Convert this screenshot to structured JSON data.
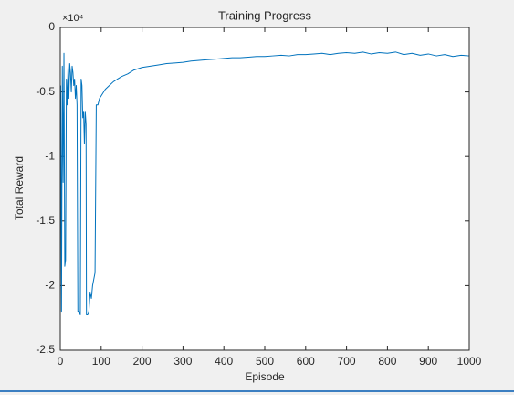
{
  "chart_data": {
    "type": "line",
    "title": "Training Progress",
    "x_label": "Episode",
    "y_label": "Total Reward",
    "y_multiplier": "×10⁴",
    "xlim": [
      0,
      1000
    ],
    "xticks": [
      0,
      100,
      200,
      300,
      400,
      500,
      600,
      700,
      800,
      900,
      1000
    ],
    "ylim": [
      -2.5,
      0
    ],
    "yticks": [
      -2.5,
      -2,
      -1.5,
      -1,
      -0.5,
      0
    ],
    "grid": false,
    "series": [
      {
        "name": "Total Reward",
        "color": "#0072bd",
        "x": [
          1,
          3,
          5,
          7,
          9,
          11,
          13,
          15,
          17,
          19,
          21,
          23,
          25,
          27,
          29,
          31,
          33,
          35,
          37,
          39,
          41,
          43,
          46,
          49,
          51,
          53,
          55,
          57,
          59,
          61,
          63,
          64,
          67,
          70,
          73,
          76,
          79,
          82,
          85,
          88,
          92,
          96,
          100,
          110,
          120,
          130,
          140,
          150,
          165,
          180,
          200,
          220,
          240,
          260,
          280,
          300,
          320,
          340,
          360,
          380,
          400,
          420,
          440,
          460,
          480,
          500,
          520,
          540,
          560,
          580,
          600,
          620,
          640,
          660,
          680,
          700,
          720,
          740,
          760,
          780,
          800,
          820,
          840,
          860,
          880,
          900,
          920,
          940,
          960,
          980,
          1000
        ],
        "values": [
          -0.45,
          -2.2,
          -0.3,
          -1.2,
          -0.2,
          -1.85,
          -1.8,
          -0.4,
          -0.6,
          -0.3,
          -0.55,
          -0.28,
          -0.35,
          -0.5,
          -0.3,
          -0.35,
          -0.45,
          -0.4,
          -0.55,
          -0.45,
          -0.6,
          -2.2,
          -2.2,
          -2.22,
          -0.4,
          -0.45,
          -0.7,
          -0.65,
          -0.9,
          -0.65,
          -0.75,
          -2.22,
          -2.22,
          -2.2,
          -2.05,
          -2.1,
          -2.0,
          -1.95,
          -1.9,
          -0.6,
          -0.6,
          -0.55,
          -0.53,
          -0.48,
          -0.45,
          -0.42,
          -0.4,
          -0.38,
          -0.36,
          -0.33,
          -0.31,
          -0.3,
          -0.29,
          -0.28,
          -0.275,
          -0.27,
          -0.26,
          -0.255,
          -0.25,
          -0.245,
          -0.24,
          -0.235,
          -0.235,
          -0.23,
          -0.225,
          -0.225,
          -0.22,
          -0.215,
          -0.22,
          -0.21,
          -0.21,
          -0.205,
          -0.2,
          -0.21,
          -0.2,
          -0.195,
          -0.2,
          -0.19,
          -0.205,
          -0.195,
          -0.2,
          -0.19,
          -0.21,
          -0.2,
          -0.215,
          -0.205,
          -0.22,
          -0.21,
          -0.225,
          -0.215,
          -0.22
        ]
      }
    ]
  }
}
